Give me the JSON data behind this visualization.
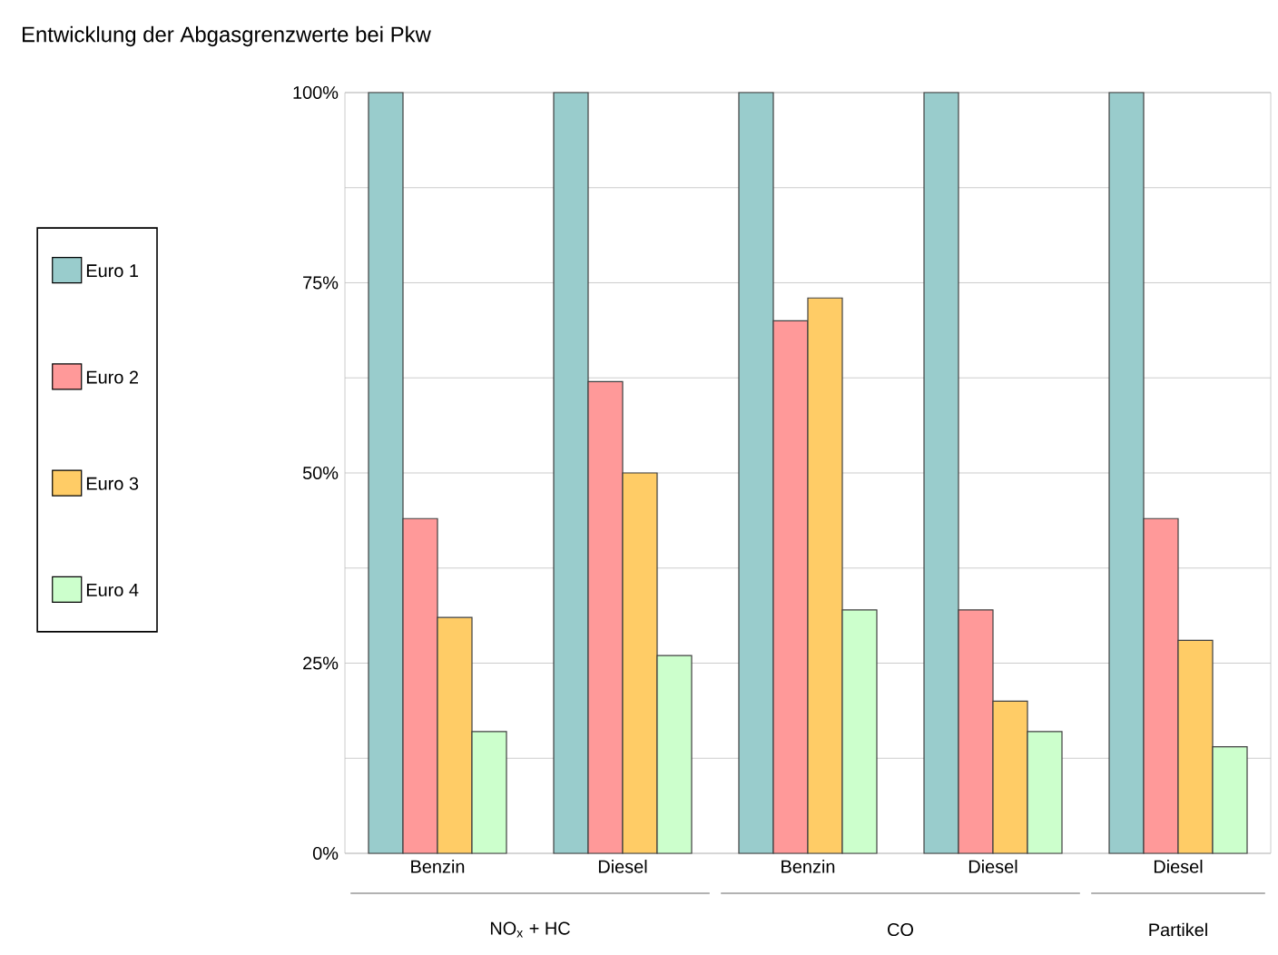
{
  "chart_data": {
    "type": "bar",
    "title": "Entwicklung der Abgasgrenzwerte bei Pkw",
    "categories": [
      "Benzin",
      "Diesel",
      "Benzin",
      "Diesel",
      "Diesel"
    ],
    "series": [
      {
        "name": "Euro 1",
        "color": "#99cccc",
        "values": [
          100,
          100,
          100,
          100,
          100
        ]
      },
      {
        "name": "Euro 2",
        "color": "#ff9999",
        "values": [
          44,
          62,
          70,
          32,
          44
        ]
      },
      {
        "name": "Euro 3",
        "color": "#ffcc66",
        "values": [
          31,
          50,
          73,
          20,
          28
        ]
      },
      {
        "name": "Euro 4",
        "color": "#ccffcc",
        "values": [
          16,
          26,
          32,
          16,
          14
        ]
      }
    ],
    "ylim": [
      0,
      100
    ],
    "yticks": [
      {
        "value": 0,
        "label": "0%"
      },
      {
        "value": 12.5,
        "label": null
      },
      {
        "value": 25,
        "label": "25%"
      },
      {
        "value": 37.5,
        "label": null
      },
      {
        "value": 50,
        "label": "50%"
      },
      {
        "value": 62.5,
        "label": null
      },
      {
        "value": 75,
        "label": "75%"
      },
      {
        "value": 87.5,
        "label": null
      },
      {
        "value": 100,
        "label": "100%"
      }
    ],
    "grid": "y",
    "legend": "left",
    "annotations": [
      "NO$_{x}$ + HC",
      "CO",
      "Partikel"
    ]
  }
}
